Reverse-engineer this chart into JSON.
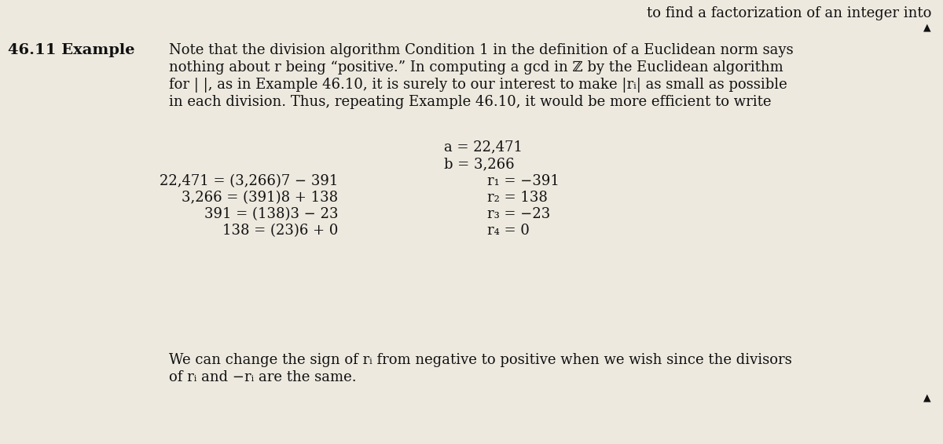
{
  "bg_color": "#ede9df",
  "fig_width": 12.0,
  "fig_height": 5.66,
  "top_right_text": "to find a factorization of an integer into",
  "top_triangle": "▲",
  "section_label": "46.11 Example",
  "para_line1": "Note that the division algorithm Condition 1 in the definition of a Euclidean norm says",
  "para_line2": "nothing about r being “positive.” In computing a gcd in ℤ by the Euclidean algorithm",
  "para_line3": "for | |, as in Example 46.10, it is surely to our interest to make |rᵢ| as small as possible",
  "para_line4": "in each division. Thus, repeating Example 46.10, it would be more efficient to write",
  "eq_a": "a = 22,471",
  "eq_b": "b = 3,266",
  "left_eqs": [
    "22,471 = (3,266)7 − 391",
    "3,266 = (391)8 + 138",
    "391 = (138)3 − 23",
    "138 = (23)6 + 0"
  ],
  "right_eqs": [
    "r₁ = −391",
    "r₂ = 138",
    "r₃ = −23",
    "r₄ = 0"
  ],
  "footer_line1": "We can change the sign of rᵢ from negative to positive when we wish since the divisors",
  "footer_line2": "of rᵢ and −rᵢ are the same.",
  "bottom_triangle": "▲",
  "font_size": 13.5,
  "text_color": "#111111"
}
